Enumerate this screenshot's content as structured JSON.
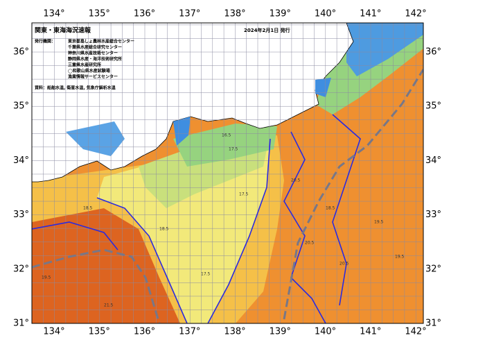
{
  "map": {
    "title": "関東・東海海況速報",
    "issue_date": "2024年2月1日 発行",
    "issuers_label": "発行機関：",
    "issuers": [
      "東京都島しょ農林水産総合センター",
      "千葉県水産総合研究センター",
      "神奈川県水産技術センター",
      "静岡県水産・海洋技術研究所",
      "三重県水産研究所",
      "◯和歌山県水産試験場",
      "漁業情報サービスセンター"
    ],
    "source": "資料：船舶水温, 衛星水温, 気象庁解析水温",
    "lon_labels": [
      "134°",
      "135°",
      "136°",
      "137°",
      "138°",
      "139°",
      "140°",
      "141°",
      "142°"
    ],
    "lat_labels": [
      "31°",
      "32°",
      "33°",
      "34°",
      "35°",
      "36°"
    ],
    "contour_labels": [
      "17.5",
      "18.5",
      "19.5",
      "20.5",
      "21.5",
      "17.5",
      "18.5",
      "19.5",
      "20.5",
      "16.5",
      "19.5",
      "20.5",
      "17.5",
      "18.5"
    ]
  }
}
